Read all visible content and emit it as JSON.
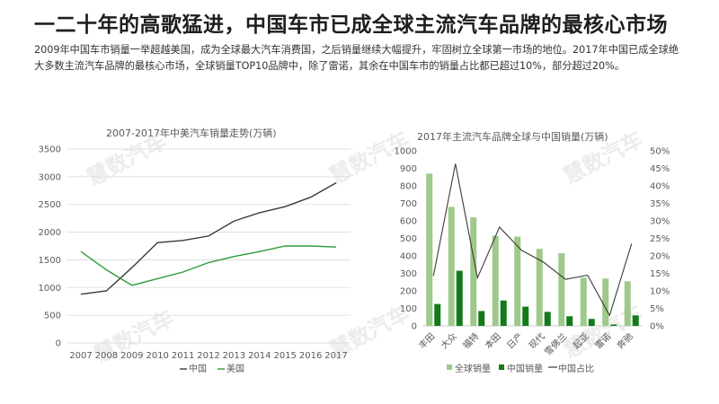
{
  "page": {
    "title": "一二十年的高歌猛进，中国车市已成全球主流汽车品牌的最核心市场",
    "description": "2009年中国车市销量一举超越美国，成为全球最大汽车消费国，之后销量继续大幅提升，牢固树立全球第一市场的地位。2017年中国已成全球绝大多数主流汽车品牌的最核心市场，全球销量TOP10品牌中，除了雷诺，其余在中国车市的销量占比都已超过10%，部分超过20%。",
    "watermark": "慧数汽车"
  },
  "colors": {
    "china_line": "#3a3a3a",
    "usa_line": "#2e9b3b",
    "global_bar": "#9ec98a",
    "china_bar": "#137a1a",
    "ratio_line": "#3a3a3a",
    "gridline": "#d9d9d9"
  },
  "chart_data": [
    {
      "type": "line",
      "title": "2007-2017年中美汽车销量走势(万辆)",
      "x": [
        "2007",
        "2008",
        "2009",
        "2010",
        "2011",
        "2012",
        "2013",
        "2014",
        "2015",
        "2016",
        "2017"
      ],
      "ylim": [
        0,
        3500
      ],
      "yticks": [
        0,
        500,
        1000,
        1500,
        2000,
        2500,
        3000,
        3500
      ],
      "series": [
        {
          "name": "中国",
          "values": [
            880,
            940,
            1360,
            1810,
            1850,
            1930,
            2200,
            2350,
            2460,
            2630,
            2890
          ]
        },
        {
          "name": "美国",
          "values": [
            1650,
            1320,
            1040,
            1160,
            1280,
            1450,
            1560,
            1650,
            1750,
            1750,
            1730
          ]
        }
      ],
      "legend": "bottom"
    },
    {
      "type": "bar",
      "title": "2017年主流汽车品牌全球与中国销量(万辆)",
      "categories": [
        "丰田",
        "大众",
        "福特",
        "本田",
        "日产",
        "现代",
        "雪佛兰",
        "起亚",
        "雷诺",
        "奔驰"
      ],
      "ylim": [
        0,
        1000
      ],
      "yticks": [
        0,
        100,
        200,
        300,
        400,
        500,
        600,
        700,
        800,
        900,
        1000
      ],
      "y2lim": [
        0,
        50
      ],
      "y2ticks": [
        "0%",
        "5%",
        "10%",
        "15%",
        "20%",
        "25%",
        "30%",
        "35%",
        "40%",
        "45%",
        "50%"
      ],
      "series": [
        {
          "name": "全球销量",
          "kind": "bar",
          "axis": "left",
          "values": [
            870,
            680,
            620,
            515,
            510,
            440,
            415,
            275,
            270,
            255
          ]
        },
        {
          "name": "中国销量",
          "kind": "bar",
          "axis": "left",
          "values": [
            125,
            315,
            85,
            145,
            110,
            80,
            55,
            40,
            8,
            60
          ]
        },
        {
          "name": "中国占比",
          "kind": "line",
          "axis": "right",
          "values": [
            14.3,
            46.3,
            13.7,
            28.2,
            21.6,
            18.2,
            13.3,
            14.5,
            3.0,
            23.5
          ]
        }
      ],
      "legend": "bottom"
    }
  ]
}
